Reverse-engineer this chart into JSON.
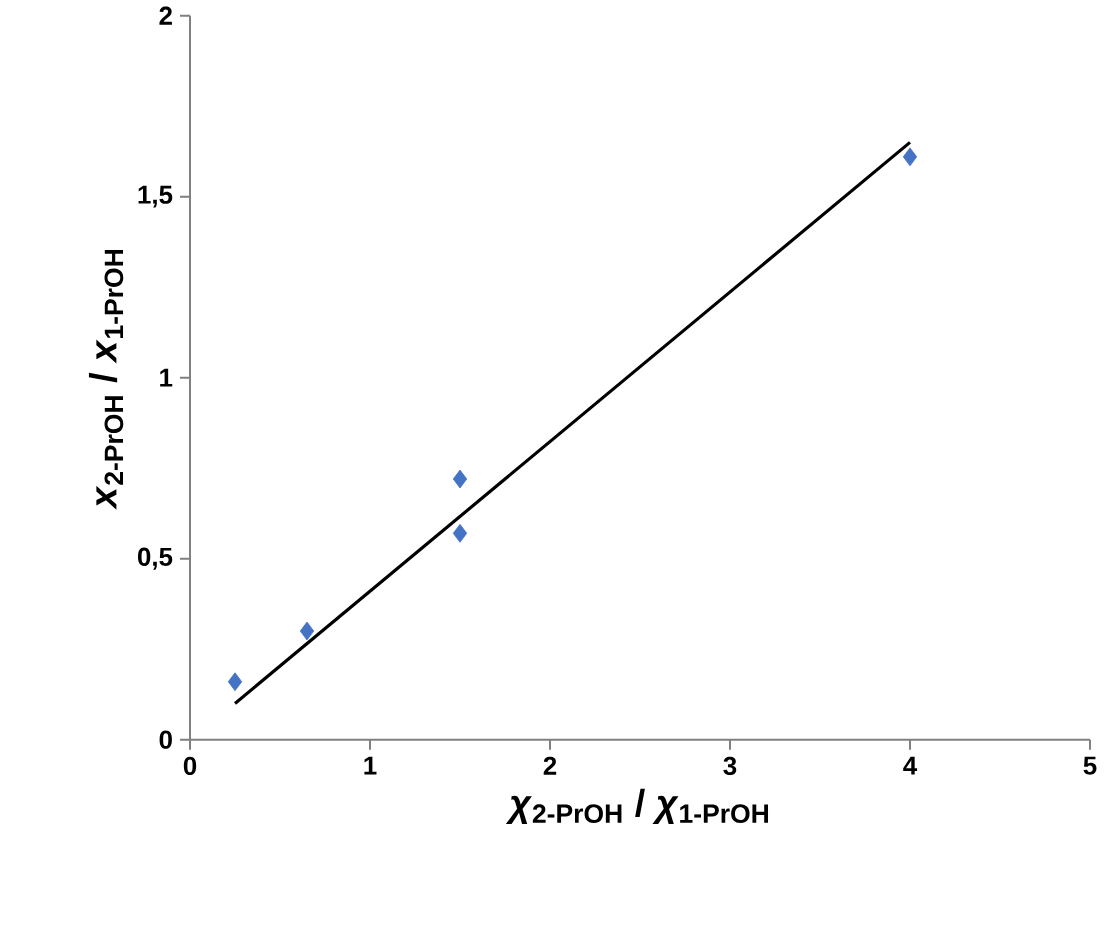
{
  "chart_data": {
    "type": "scatter",
    "xlabel": "*χ*$_{2-PrOH}$ / *χ*$_{1-PrOH}$",
    "ylabel": "*x*$_{2-PrOH}$ / *x*$_{1-PrOH}$",
    "xlim": [
      0,
      5
    ],
    "ylim": [
      0,
      2
    ],
    "xticks": [
      0,
      1,
      2,
      3,
      4,
      5
    ],
    "yticks": [
      0,
      {
        "value": 0.5,
        "label": "0,5"
      },
      1,
      {
        "value": 1.5,
        "label": "1,5"
      },
      2
    ],
    "grid": false,
    "series": [
      {
        "color": "#4472c4",
        "marker": "diamond",
        "x": [
          0.25,
          0.65,
          1.5,
          1.5,
          4
        ],
        "values": [
          0.16,
          0.3,
          0.72,
          0.57,
          1.61
        ]
      },
      {
        "type": "line",
        "color": "#000000",
        "marker": "none",
        "line_style": "solid",
        "x": [
          0.25,
          4
        ],
        "values": [
          0.1,
          1.65
        ]
      }
    ]
  }
}
